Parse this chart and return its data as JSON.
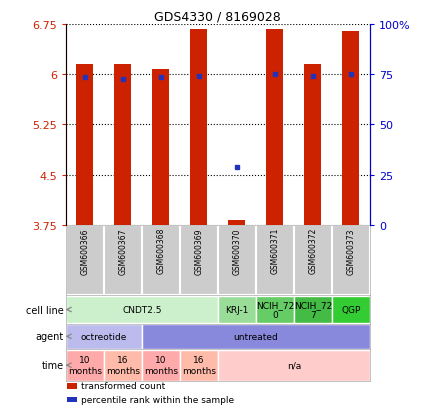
{
  "title": "GDS4330 / 8169028",
  "samples": [
    "GSM600366",
    "GSM600367",
    "GSM600368",
    "GSM600369",
    "GSM600370",
    "GSM600371",
    "GSM600372",
    "GSM600373"
  ],
  "bar_tops": [
    6.15,
    6.15,
    6.07,
    6.68,
    3.83,
    6.68,
    6.15,
    6.65
  ],
  "bar_bottom": 3.75,
  "blue_y": [
    5.95,
    5.92,
    5.95,
    5.97,
    4.62,
    6.0,
    5.97,
    6.0
  ],
  "ylim": [
    3.75,
    6.75
  ],
  "yticks_left": [
    3.75,
    4.5,
    5.25,
    6.0,
    6.75
  ],
  "ytick_labels_left": [
    "3.75",
    "4.5",
    "5.25",
    "6",
    "6.75"
  ],
  "yticks_right_pct": [
    0,
    25,
    50,
    75,
    100
  ],
  "ytick_labels_right": [
    "0",
    "25",
    "50",
    "75",
    "100%"
  ],
  "bar_color": "#cc2200",
  "blue_color": "#2233bb",
  "bar_width": 0.45,
  "cell_line_groups": [
    {
      "label": "CNDT2.5",
      "start": 0,
      "end": 4,
      "color": "#ccf0cc"
    },
    {
      "label": "KRJ-1",
      "start": 4,
      "end": 5,
      "color": "#99dd99"
    },
    {
      "label": "NCIH_72\n0",
      "start": 5,
      "end": 6,
      "color": "#66cc66"
    },
    {
      "label": "NCIH_72\n7",
      "start": 6,
      "end": 7,
      "color": "#44bb44"
    },
    {
      "label": "QGP",
      "start": 7,
      "end": 8,
      "color": "#33cc33"
    }
  ],
  "agent_groups": [
    {
      "label": "octreotide",
      "start": 0,
      "end": 2,
      "color": "#bbbbee"
    },
    {
      "label": "untreated",
      "start": 2,
      "end": 8,
      "color": "#8888dd"
    }
  ],
  "time_groups": [
    {
      "label": "10\nmonths",
      "start": 0,
      "end": 1,
      "color": "#ffaaaa"
    },
    {
      "label": "16\nmonths",
      "start": 1,
      "end": 2,
      "color": "#ffbbaa"
    },
    {
      "label": "10\nmonths",
      "start": 2,
      "end": 3,
      "color": "#ffaaaa"
    },
    {
      "label": "16\nmonths",
      "start": 3,
      "end": 4,
      "color": "#ffbbaa"
    },
    {
      "label": "n/a",
      "start": 4,
      "end": 8,
      "color": "#ffcccc"
    }
  ],
  "row_labels": [
    "cell line",
    "agent",
    "time"
  ],
  "legend_items": [
    {
      "color": "#cc2200",
      "label": "transformed count"
    },
    {
      "color": "#2233bb",
      "label": "percentile rank within the sample"
    }
  ],
  "gsm_box_color": "#cccccc",
  "gsm_bg_color": "#dddddd"
}
